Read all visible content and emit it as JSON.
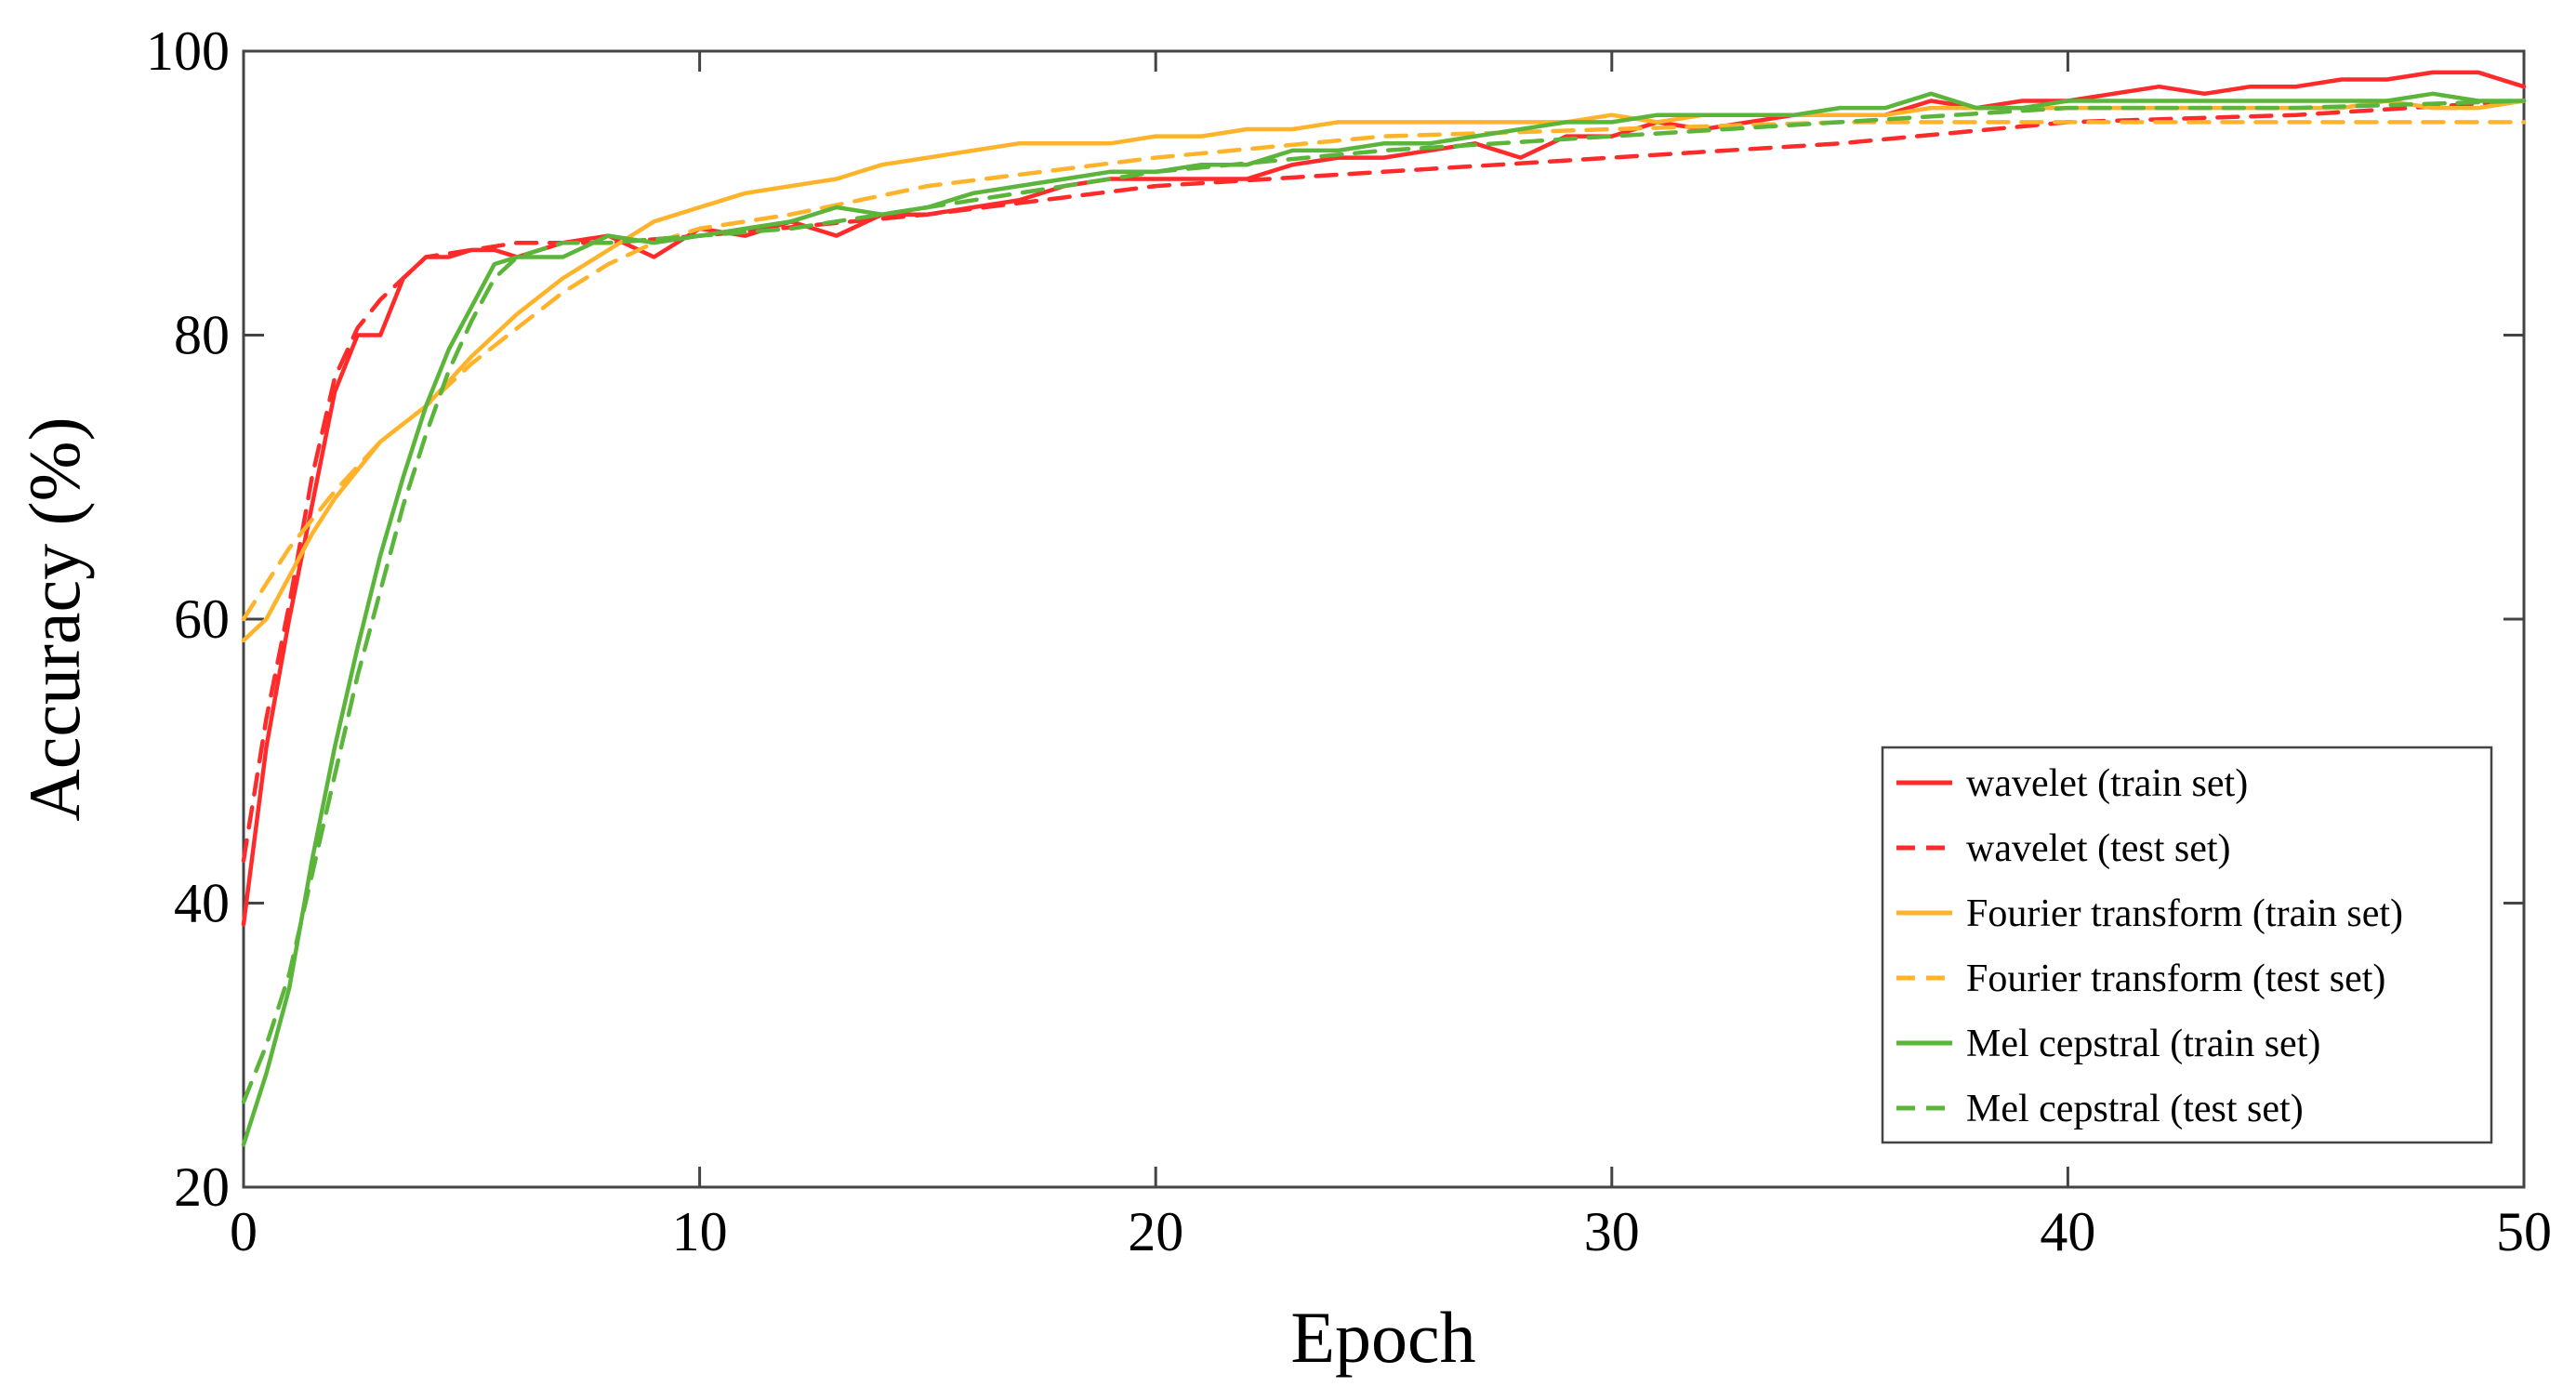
{
  "chart_data": {
    "type": "line",
    "title": "",
    "xlabel": "Epoch",
    "ylabel": "Accuracy (%)",
    "xlim": [
      0,
      50
    ],
    "ylim": [
      20,
      100
    ],
    "xticks": [
      0,
      10,
      20,
      30,
      40,
      50
    ],
    "yticks": [
      20,
      40,
      60,
      80,
      100
    ],
    "grid": false,
    "legend_position": "bottom-right",
    "series": [
      {
        "name": "wavelet (train set)",
        "color": "#ff2a2a",
        "style": "solid",
        "x": [
          0,
          0.5,
          1,
          1.5,
          2,
          2.5,
          3,
          3.5,
          4,
          4.5,
          5,
          5.5,
          6,
          7,
          8,
          9,
          10,
          11,
          12,
          13,
          14,
          15,
          16,
          17,
          18,
          19,
          20,
          21,
          22,
          23,
          24,
          25,
          26,
          27,
          28,
          29,
          30,
          31,
          32,
          33,
          34,
          35,
          36,
          37,
          38,
          39,
          40,
          41,
          42,
          43,
          44,
          45,
          46,
          47,
          48,
          49,
          50
        ],
        "y": [
          38.5,
          51,
          60,
          68,
          76,
          80,
          80,
          84,
          85.5,
          85.5,
          86,
          86,
          85.5,
          86.5,
          87,
          85.5,
          87.5,
          87,
          88,
          87,
          88.5,
          88.5,
          89,
          89.5,
          90.5,
          91,
          91,
          91,
          91,
          92,
          92.5,
          92.5,
          93,
          93.5,
          92.5,
          94,
          94,
          95,
          94.5,
          95,
          95.5,
          95.5,
          95.5,
          96.5,
          96,
          96.5,
          96.5,
          97,
          97.5,
          97,
          97.5,
          97.5,
          98,
          98,
          98.5,
          98.5,
          97.5
        ]
      },
      {
        "name": "wavelet (test set)",
        "color": "#ff2a2a",
        "style": "dashed",
        "x": [
          0,
          0.5,
          1,
          1.5,
          2,
          2.5,
          3,
          3.5,
          4,
          5,
          6,
          8,
          10,
          15,
          20,
          25,
          30,
          35,
          40,
          45,
          50
        ],
        "y": [
          43,
          53,
          61,
          70,
          77,
          80.5,
          82.5,
          84,
          85.5,
          86,
          86.5,
          86.5,
          87,
          88.5,
          90.5,
          91.5,
          92.5,
          93.5,
          95,
          95.5,
          96.5
        ]
      },
      {
        "name": "Fourier transform (train set)",
        "color": "#ffb32a",
        "style": "solid",
        "x": [
          0,
          0.5,
          1,
          1.5,
          2,
          3,
          4,
          5,
          6,
          7,
          8,
          9,
          10,
          11,
          12,
          13,
          14,
          15,
          16,
          17,
          18,
          19,
          20,
          21,
          22,
          23,
          24,
          25,
          26,
          27,
          28,
          29,
          30,
          31,
          32,
          33,
          34,
          35,
          36,
          37,
          38,
          39,
          40,
          41,
          42,
          43,
          44,
          45,
          46,
          47,
          48,
          49,
          50
        ],
        "y": [
          58.5,
          60,
          63,
          66,
          68.5,
          72.5,
          75,
          78.5,
          81.5,
          84,
          86,
          88,
          89,
          90,
          90.5,
          91,
          92,
          92.5,
          93,
          93.5,
          93.5,
          93.5,
          94,
          94,
          94.5,
          94.5,
          95,
          95,
          95,
          95,
          95,
          95,
          95.5,
          95,
          95.5,
          95.5,
          95.5,
          95.5,
          95.5,
          96,
          96,
          96,
          96,
          96,
          96,
          96,
          96,
          96,
          96,
          96.5,
          96,
          96,
          96.5
        ]
      },
      {
        "name": "Fourier transform (test set)",
        "color": "#ffb32a",
        "style": "dashed",
        "x": [
          0,
          0.5,
          1,
          1.5,
          2,
          3,
          4,
          5,
          6,
          7,
          8,
          9,
          10,
          12,
          15,
          20,
          25,
          30,
          35,
          40,
          45,
          50
        ],
        "y": [
          60,
          62.5,
          65,
          67,
          69,
          72.5,
          75,
          78,
          80.5,
          83,
          85,
          86.5,
          87.5,
          88.5,
          90.5,
          92.5,
          94,
          94.5,
          95,
          95,
          95,
          95
        ]
      },
      {
        "name": "Mel cepstral (train set)",
        "color": "#5ab53a",
        "style": "solid",
        "x": [
          0,
          0.5,
          1,
          1.5,
          2,
          2.5,
          3,
          3.5,
          4,
          4.5,
          5,
          5.5,
          6,
          7,
          8,
          9,
          10,
          11,
          12,
          13,
          14,
          15,
          16,
          17,
          18,
          19,
          20,
          21,
          22,
          23,
          24,
          25,
          26,
          27,
          28,
          29,
          30,
          31,
          32,
          33,
          34,
          35,
          36,
          37,
          38,
          39,
          40,
          41,
          42,
          43,
          44,
          45,
          46,
          47,
          48,
          49,
          50
        ],
        "y": [
          23,
          28,
          34,
          43,
          51,
          58,
          64.5,
          70,
          75,
          79,
          82,
          85,
          85.5,
          85.5,
          87,
          86.5,
          87,
          87.5,
          88,
          89,
          88.5,
          89,
          90,
          90.5,
          91,
          91.5,
          91.5,
          92,
          92,
          93,
          93,
          93.5,
          93.5,
          94,
          94.5,
          95,
          95,
          95.5,
          95.5,
          95.5,
          95.5,
          96,
          96,
          97,
          96,
          96,
          96.5,
          96.5,
          96.5,
          96.5,
          96.5,
          96.5,
          96.5,
          96.5,
          97,
          96.5,
          96.5
        ]
      },
      {
        "name": "Mel cepstral (test set)",
        "color": "#5ab53a",
        "style": "dashed",
        "x": [
          0,
          0.5,
          1,
          1.5,
          2,
          2.5,
          3,
          3.5,
          4,
          4.5,
          5,
          5.5,
          6,
          7,
          8,
          10,
          12,
          15,
          20,
          25,
          30,
          35,
          40,
          45,
          50
        ],
        "y": [
          26,
          30,
          35,
          42,
          49,
          56,
          62,
          68,
          73,
          77.5,
          81,
          84,
          85.5,
          86.5,
          86.5,
          87,
          87.5,
          89,
          91.5,
          93,
          94,
          95,
          96,
          96,
          96.5
        ]
      }
    ]
  }
}
